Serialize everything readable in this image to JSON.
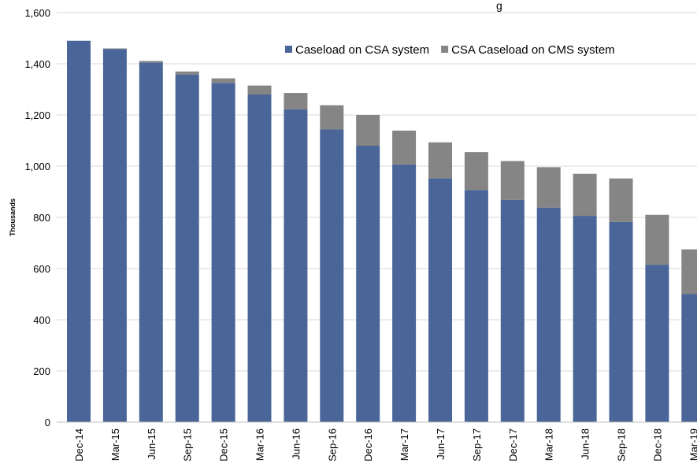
{
  "chart_data": {
    "type": "bar",
    "stacked": true,
    "title": "",
    "title_fragment": "g",
    "xlabel": "",
    "ylabel": "Thousands",
    "ylim": [
      0,
      1600
    ],
    "yticks": [
      0,
      200,
      400,
      600,
      800,
      1000,
      1200,
      1400,
      1600
    ],
    "ytick_labels": [
      "0",
      "200",
      "400",
      "600",
      "800",
      "1,000",
      "1,200",
      "1,400",
      "1,600"
    ],
    "grid": true,
    "legend_position": "top-right",
    "categories": [
      "Dec-14",
      "Mar-15",
      "Jun-15",
      "Sep-15",
      "Dec-15",
      "Mar-16",
      "Jun-16",
      "Sep-16",
      "Dec-16",
      "Mar-17",
      "Jun-17",
      "Sep-17",
      "Dec-17",
      "Mar-18",
      "Jun-18",
      "Sep-18",
      "Dec-18",
      "Mar-19"
    ],
    "series": [
      {
        "name": "Caseload on CSA system",
        "color": "#4A6598",
        "values": [
          1490,
          1458,
          1405,
          1358,
          1325,
          1280,
          1222,
          1143,
          1080,
          1007,
          953,
          907,
          868,
          838,
          806,
          782,
          615,
          500
        ]
      },
      {
        "name": "CSA Caseload on CMS system",
        "color": "#858585",
        "values": [
          0,
          2,
          6,
          12,
          18,
          35,
          64,
          95,
          120,
          132,
          140,
          148,
          152,
          158,
          164,
          170,
          195,
          175
        ]
      }
    ]
  }
}
